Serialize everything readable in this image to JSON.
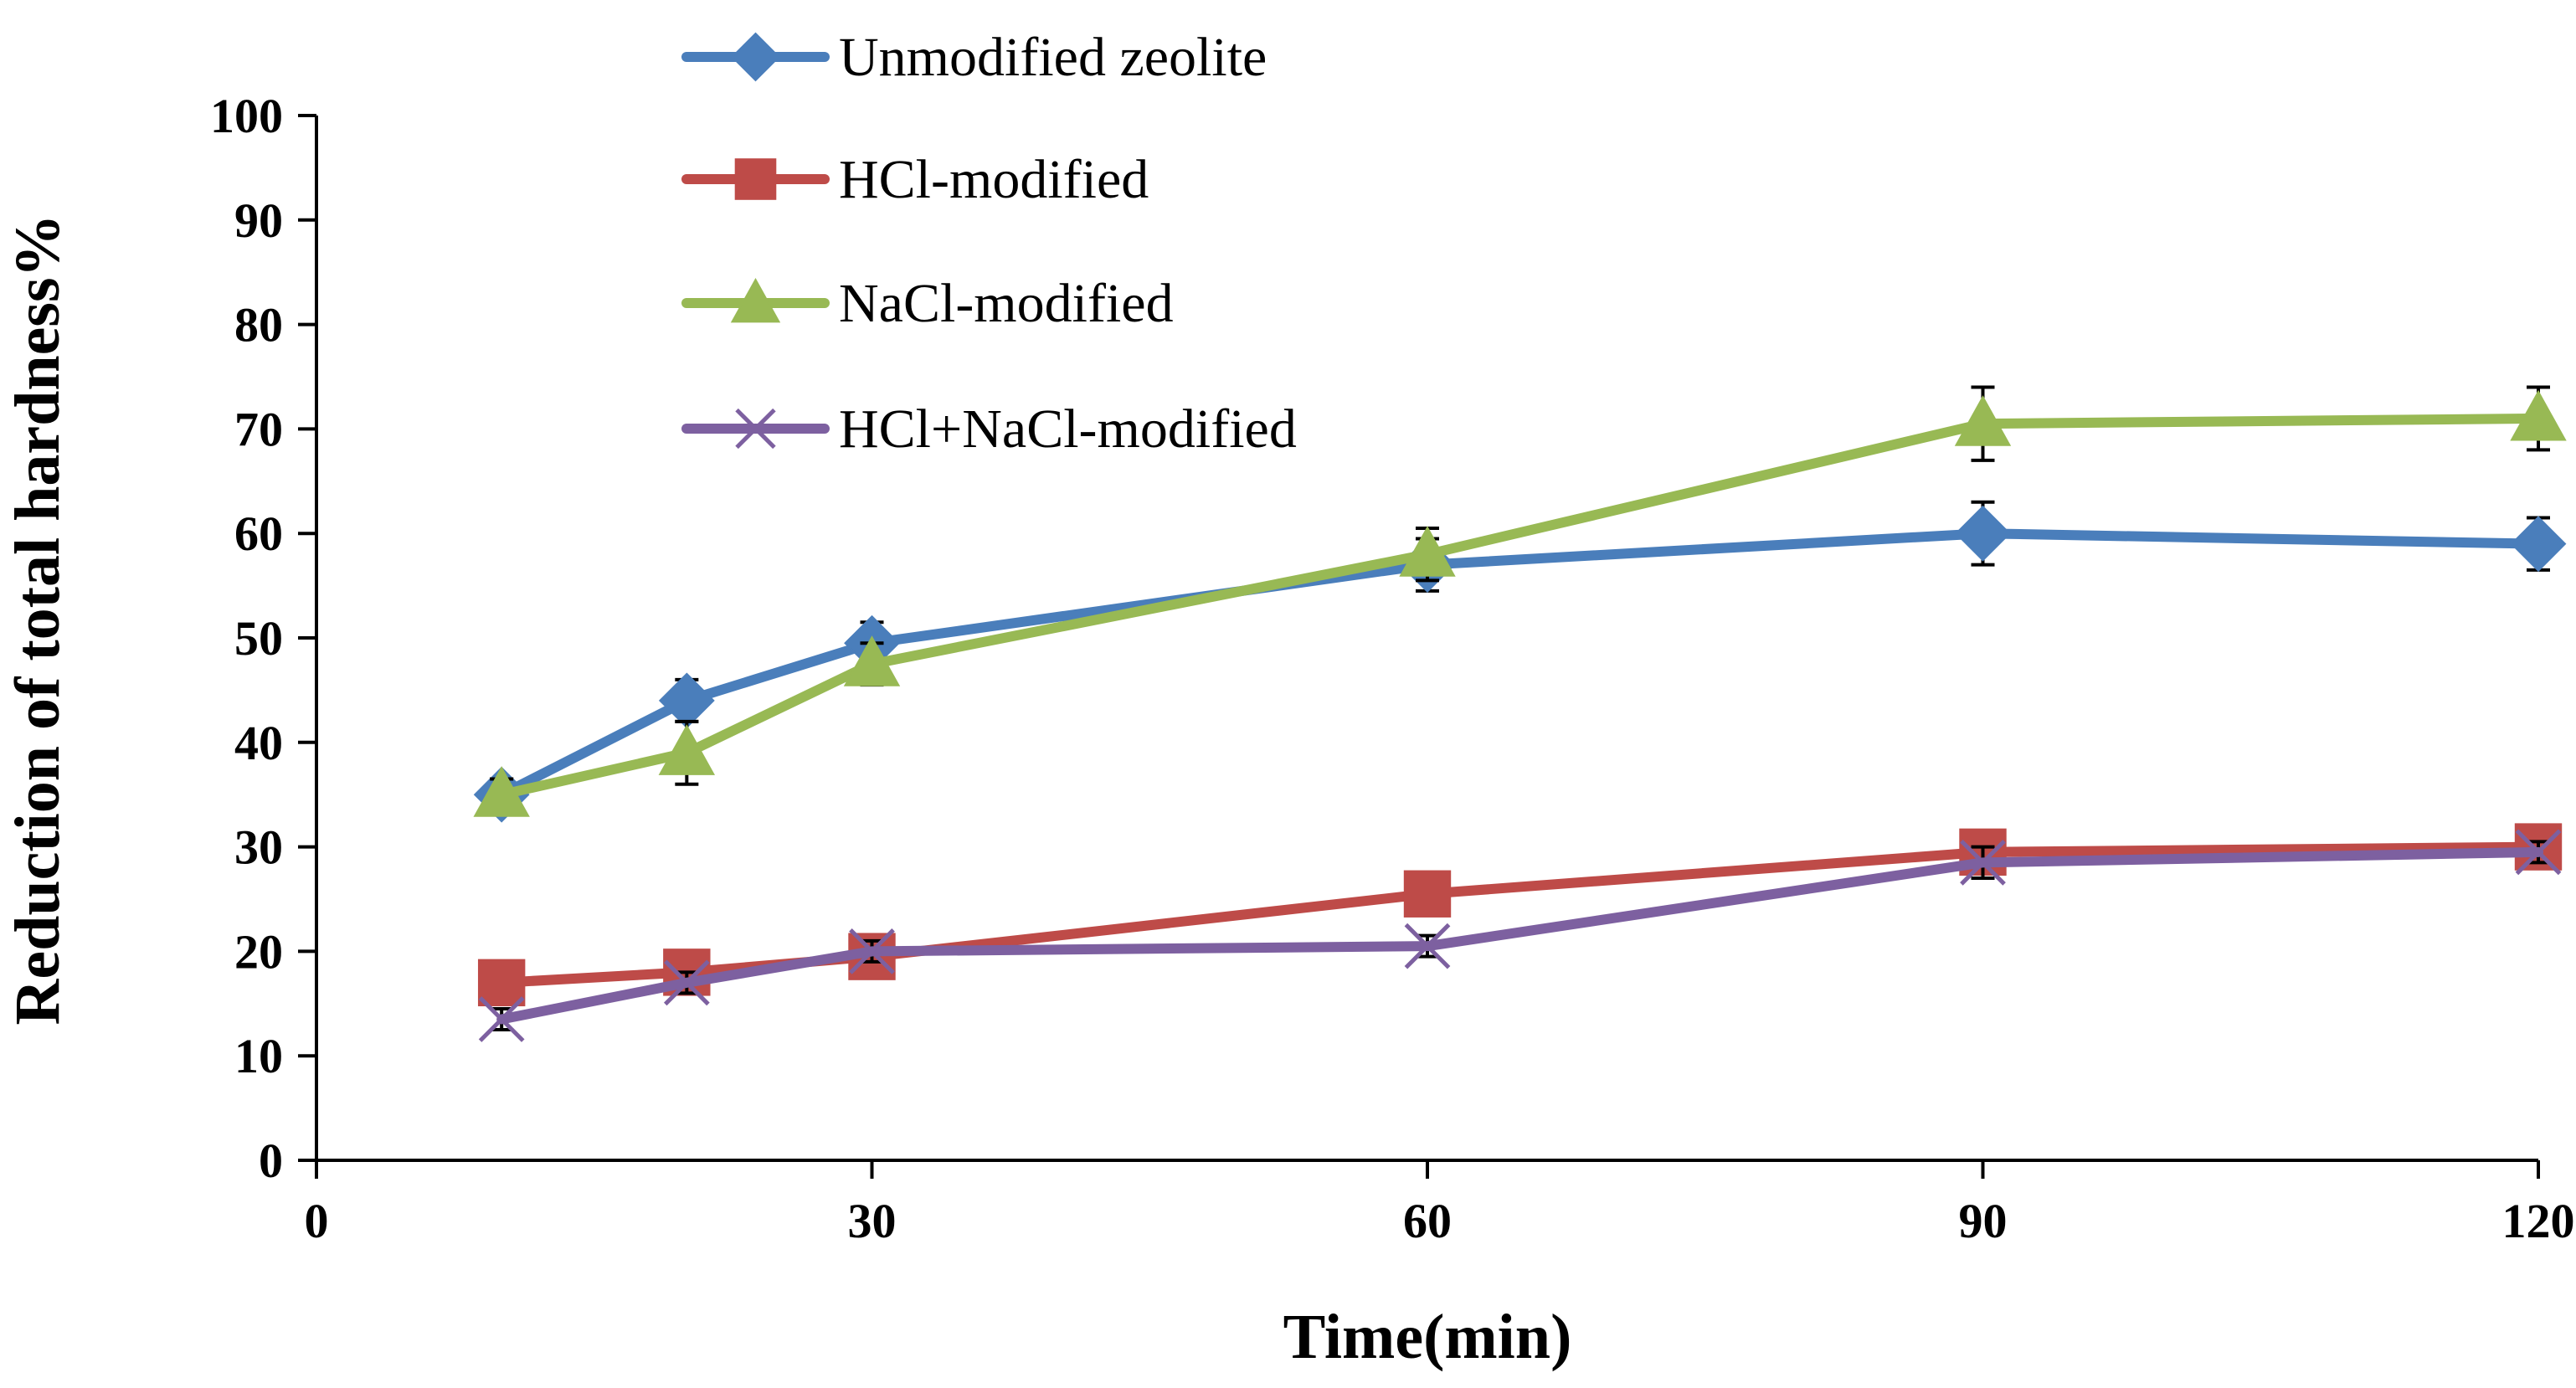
{
  "chart_data": {
    "type": "line",
    "title": "",
    "xlabel": "Time(min)",
    "ylabel": "Reduction of total hardness%",
    "xlim": [
      0,
      120
    ],
    "ylim": [
      0,
      100
    ],
    "x_ticks": [
      0,
      30,
      60,
      90,
      120
    ],
    "y_ticks": [
      0,
      10,
      20,
      30,
      40,
      50,
      60,
      70,
      80,
      90,
      100
    ],
    "grid": false,
    "legend_position": "top-center",
    "error_bars": true,
    "series": [
      {
        "name": "Unmodified zeolite",
        "color": "#4a7ebb",
        "marker": "diamond",
        "x": [
          10,
          20,
          30,
          60,
          90,
          120
        ],
        "y": [
          35,
          44,
          49.5,
          57,
          60,
          59
        ],
        "err": [
          1.5,
          2,
          2,
          2.5,
          3,
          2.5
        ]
      },
      {
        "name": "HCl-modified",
        "color": "#be4b48",
        "marker": "square",
        "x": [
          10,
          20,
          30,
          60,
          90,
          120
        ],
        "y": [
          17,
          18,
          19.5,
          25.5,
          29.5,
          30
        ],
        "err": [
          1,
          1,
          1,
          1,
          1.5,
          1.5
        ]
      },
      {
        "name": "NaCl-modified",
        "color": "#98b954",
        "marker": "triangle",
        "x": [
          10,
          20,
          30,
          60,
          90,
          120
        ],
        "y": [
          35,
          39,
          47.5,
          58,
          70.5,
          71
        ],
        "err": [
          1.5,
          3,
          2,
          2.5,
          3.5,
          3
        ]
      },
      {
        "name": "HCl+NaCl-modified",
        "color": "#7d60a0",
        "marker": "x",
        "x": [
          10,
          20,
          30,
          60,
          90,
          120
        ],
        "y": [
          13.5,
          17,
          20,
          20.5,
          28.5,
          29.5
        ],
        "err": [
          1,
          1,
          1,
          1,
          1.5,
          1
        ]
      }
    ]
  }
}
